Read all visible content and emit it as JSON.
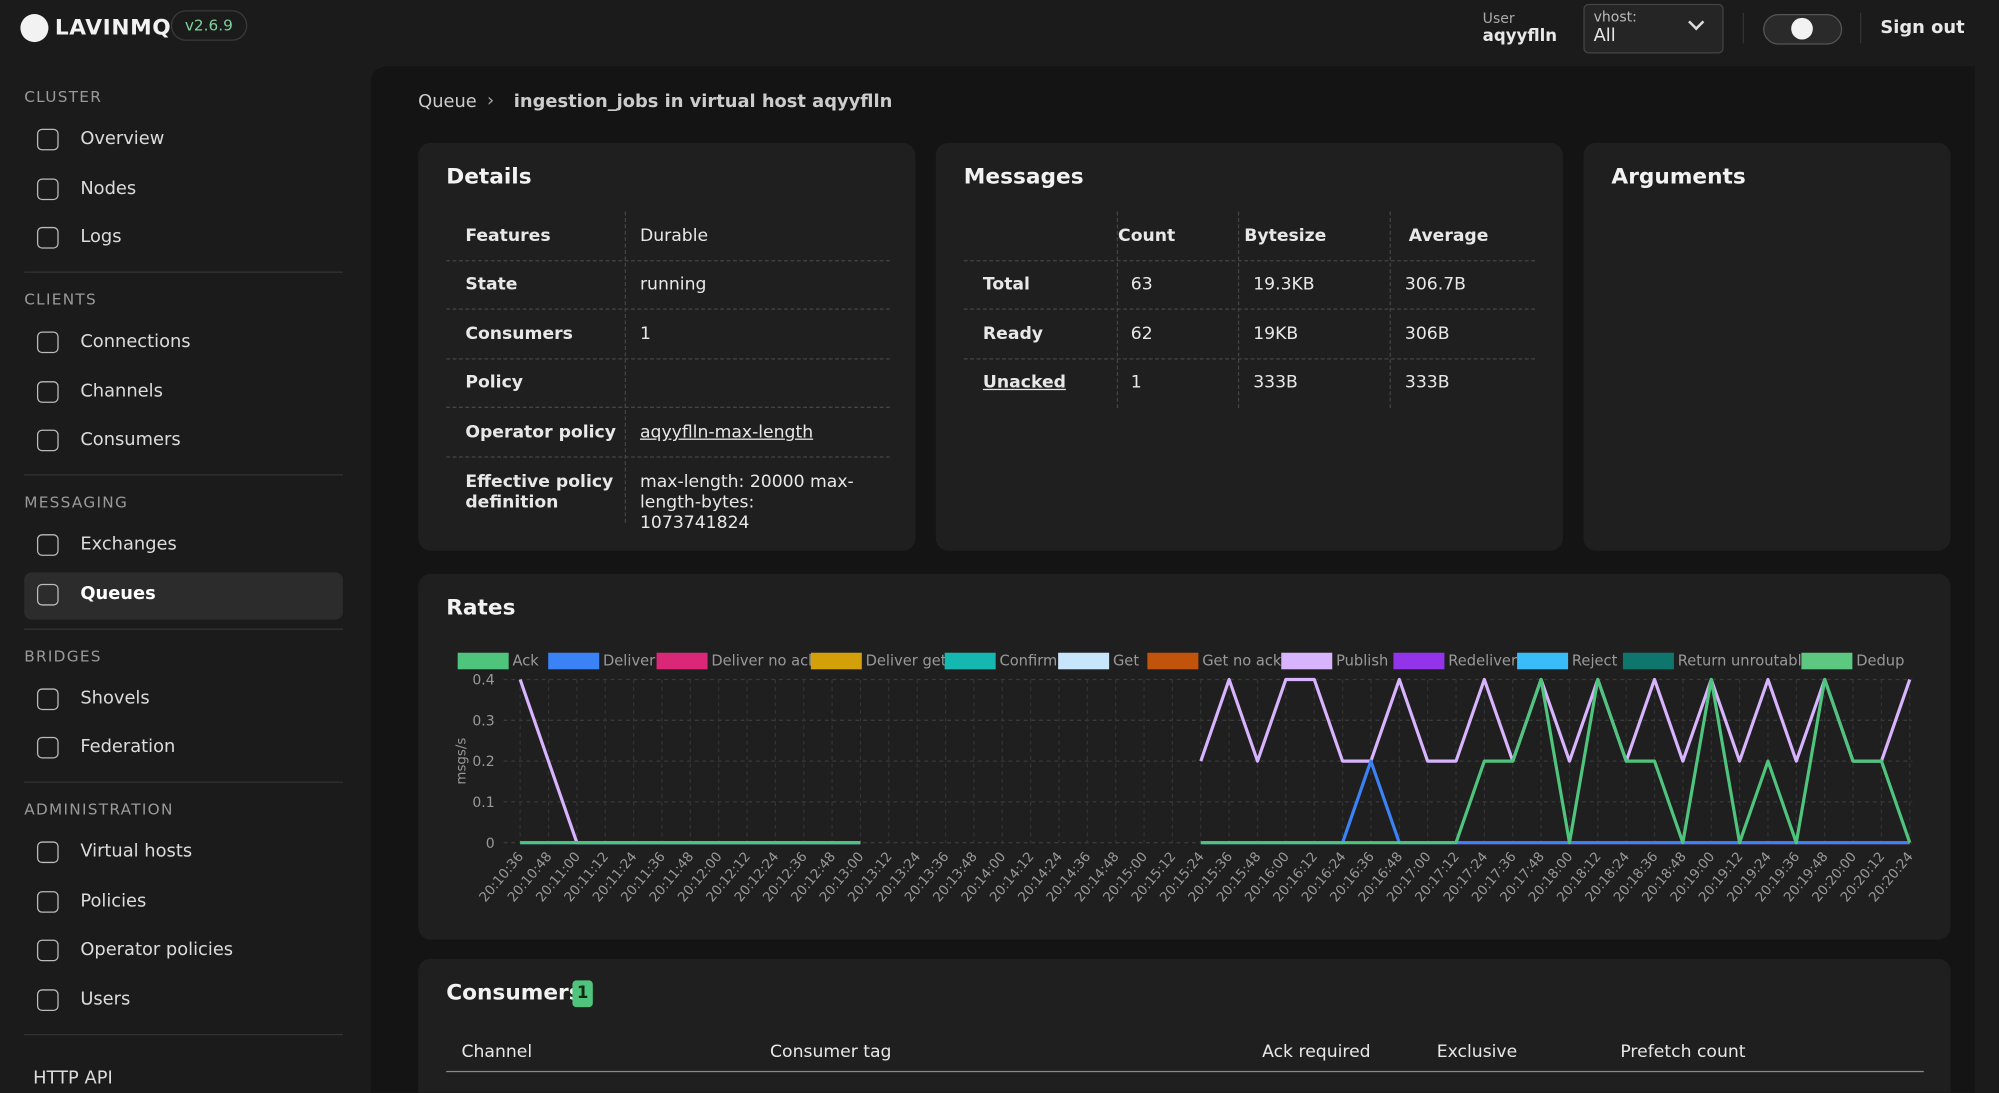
{
  "header": {
    "brand": "LAVINMQ",
    "version": "v2.6.9",
    "user_label": "User",
    "user": "aqyyflln",
    "vhost_label": "vhost:",
    "vhost": "All",
    "sign_out": "Sign out"
  },
  "sidebar": {
    "sections": [
      {
        "title": "CLUSTER",
        "items": [
          "Overview",
          "Nodes",
          "Logs"
        ]
      },
      {
        "title": "CLIENTS",
        "items": [
          "Connections",
          "Channels",
          "Consumers"
        ]
      },
      {
        "title": "MESSAGING",
        "items": [
          "Exchanges",
          "Queues"
        ]
      },
      {
        "title": "BRIDGES",
        "items": [
          "Shovels",
          "Federation"
        ]
      },
      {
        "title": "ADMINISTRATION",
        "items": [
          "Virtual hosts",
          "Policies",
          "Operator policies",
          "Users"
        ]
      }
    ],
    "active": "Queues",
    "http_api": "HTTP API"
  },
  "breadcrumb": [
    "Queue",
    "ingestion_jobs in virtual host aqyyflln"
  ],
  "details": {
    "title": "Details",
    "rows": [
      {
        "label": "Features",
        "value": "Durable"
      },
      {
        "label": "State",
        "value": "running"
      },
      {
        "label": "Consumers",
        "value": 1
      },
      {
        "label": "Policy"
      },
      {
        "label": "Operator policy",
        "value": "aqyyflln-max-length"
      },
      {
        "label": "Effective policy definition",
        "value": "max-length: 20000 max-length-bytes: 1073741824"
      }
    ]
  },
  "messages": {
    "title": "Messages",
    "columns": [
      "Count",
      "Bytesize",
      "Average"
    ],
    "rows": [
      [
        "Total",
        63,
        "19.3KB",
        "306.7B"
      ],
      [
        "Ready",
        62,
        "19KB",
        "306B"
      ],
      [
        "Unacked",
        1,
        "333B",
        "333B"
      ]
    ]
  },
  "arguments": {
    "title": "Arguments"
  },
  "chart_data": {
    "type": "line",
    "title": "Rates",
    "ylabel": "msgs/s",
    "ylim": [
      0,
      0.4
    ],
    "yticks": [
      0,
      0.1,
      0.2,
      0.3,
      0.4
    ],
    "grid": true,
    "x": [
      "20:10:36",
      "20:10:48",
      "20:11:00",
      "20:11:12",
      "20:11:24",
      "20:11:36",
      "20:11:48",
      "20:12:00",
      "20:12:12",
      "20:12:24",
      "20:12:36",
      "20:12:48",
      "20:13:00",
      "20:13:12",
      "20:13:24",
      "20:13:36",
      "20:13:48",
      "20:14:00",
      "20:14:12",
      "20:14:24",
      "20:14:36",
      "20:14:48",
      "20:15:00",
      "20:15:12",
      "20:15:24",
      "20:15:36",
      "20:15:48",
      "20:16:00",
      "20:16:12",
      "20:16:24",
      "20:16:36",
      "20:16:48",
      "20:17:00",
      "20:17:12",
      "20:17:24",
      "20:17:36",
      "20:17:48",
      "20:18:00",
      "20:18:12",
      "20:18:24",
      "20:18:36",
      "20:18:48",
      "20:19:00",
      "20:19:12",
      "20:19:24",
      "20:19:36",
      "20:19:48",
      "20:20:00",
      "20:20:12",
      "20:20:24"
    ],
    "series": [
      {
        "name": "Ack",
        "color": "#4fc47d",
        "values": [
          0,
          0,
          0,
          0,
          0,
          0,
          0,
          0,
          0,
          0,
          0,
          0,
          0,
          null,
          null,
          null,
          null,
          null,
          null,
          null,
          null,
          null,
          null,
          null,
          0,
          0,
          0,
          0,
          0,
          0,
          0,
          0,
          0,
          0,
          0.2,
          0.2,
          0.4,
          0,
          0.4,
          0.2,
          0.2,
          0,
          0.4,
          0,
          0.2,
          0,
          0.4,
          0.2,
          0.2,
          0
        ]
      },
      {
        "name": "Deliver",
        "color": "#3b82f6",
        "values": [
          0,
          0,
          0,
          0,
          0,
          0,
          0,
          0,
          0,
          0,
          0,
          0,
          0,
          null,
          null,
          null,
          null,
          null,
          null,
          null,
          null,
          null,
          null,
          null,
          0,
          0,
          0,
          0,
          0,
          0,
          0.2,
          0,
          0,
          0,
          0,
          0,
          0,
          0,
          0,
          0,
          0,
          0,
          0,
          0,
          0,
          0,
          0,
          0,
          0,
          0
        ]
      },
      {
        "name": "Deliver no ack",
        "color": "#db2777",
        "values": [
          null,
          null,
          null,
          null,
          null,
          null,
          null,
          null,
          null,
          null,
          null,
          null,
          null,
          null,
          null,
          null,
          null,
          null,
          null,
          null,
          null,
          null,
          null,
          null,
          null,
          null,
          null,
          null,
          null,
          null,
          null,
          null,
          null,
          0,
          0,
          0,
          0,
          0,
          0,
          0,
          0,
          0,
          0,
          0,
          0,
          0,
          0,
          0,
          0,
          0
        ]
      },
      {
        "name": "Deliver get",
        "color": "#d4a00a"
      },
      {
        "name": "Confirm",
        "color": "#14b8b0"
      },
      {
        "name": "Get",
        "color": "#c8e6fb"
      },
      {
        "name": "Get no ack",
        "color": "#c2530a"
      },
      {
        "name": "Publish",
        "color": "#d8b4fe",
        "values": [
          0.4,
          0.2,
          0,
          0,
          0,
          0,
          0,
          0,
          0,
          0,
          0,
          0,
          0,
          null,
          null,
          null,
          null,
          null,
          null,
          null,
          null,
          null,
          null,
          null,
          0.2,
          0.4,
          0.2,
          0.4,
          0.4,
          0.2,
          0.2,
          0.4,
          0.2,
          0.2,
          0.4,
          0.2,
          0.4,
          0.2,
          0.4,
          0.2,
          0.4,
          0.2,
          0.4,
          0.2,
          0.4,
          0.2,
          0.4,
          0.2,
          0.2,
          0.4
        ]
      },
      {
        "name": "Redeliver",
        "color": "#9333ea"
      },
      {
        "name": "Reject",
        "color": "#38bdf8"
      },
      {
        "name": "Return unroutable",
        "color": "#0f766e"
      },
      {
        "name": "Dedup",
        "color": "#5cc880"
      }
    ]
  },
  "consumers": {
    "title": "Consumers",
    "count": 1,
    "columns": [
      "Channel",
      "Consumer tag",
      "Ack required",
      "Exclusive",
      "Prefetch count"
    ]
  }
}
